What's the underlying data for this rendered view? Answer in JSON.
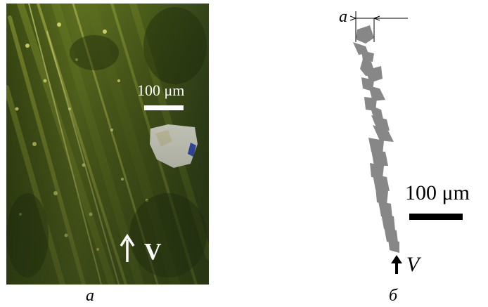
{
  "panel_a": {
    "scale_label": "100 μm",
    "velocity_label": "V",
    "caption": "a"
  },
  "panel_b": {
    "width_label": "a",
    "scale_label": "100 μm",
    "velocity_label": "V",
    "caption": "б"
  },
  "colors": {
    "micrograph_dark": "#2e3d12",
    "micrograph_mid": "#5a6e1e",
    "micrograph_bright": "#d9e06a",
    "wear_track_fill": "#878787",
    "ink": "#000000"
  }
}
